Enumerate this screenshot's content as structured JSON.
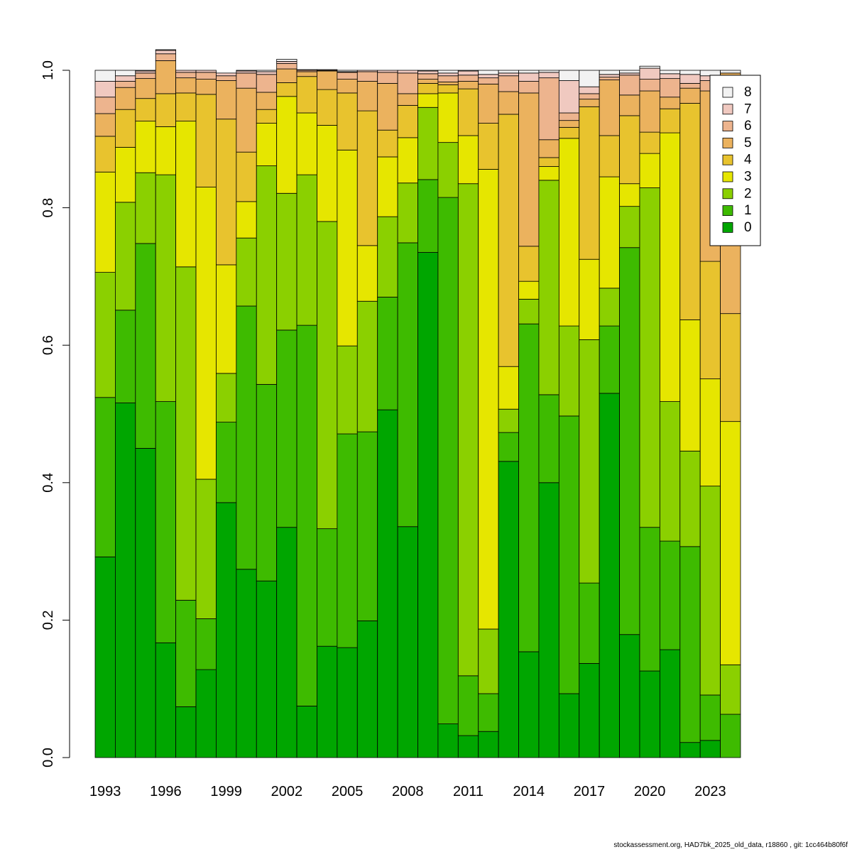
{
  "chart_data": {
    "type": "bar",
    "stacked": true,
    "title": "",
    "xlabel": "",
    "ylabel": "",
    "ylim": [
      0,
      1
    ],
    "grid": false,
    "legend_position": "top-right",
    "categories": [
      "1993",
      "1994",
      "1995",
      "1996",
      "1997",
      "1998",
      "1999",
      "2000",
      "2001",
      "2002",
      "2003",
      "2004",
      "2005",
      "2006",
      "2007",
      "2008",
      "2009",
      "2010",
      "2011",
      "2012",
      "2013",
      "2014",
      "2015",
      "2016",
      "2017",
      "2018",
      "2019",
      "2020",
      "2021",
      "2022",
      "2023",
      "2024"
    ],
    "x_tick_labels": [
      "1993",
      "1996",
      "1999",
      "2002",
      "2005",
      "2008",
      "2011",
      "2014",
      "2017",
      "2020",
      "2023"
    ],
    "x_tick_categories": [
      "1993",
      "1996",
      "1999",
      "2002",
      "2005",
      "2008",
      "2011",
      "2014",
      "2017",
      "2020",
      "2023"
    ],
    "y_ticks": [
      0.0,
      0.2,
      0.4,
      0.6,
      0.8,
      1.0
    ],
    "y_tick_labels": [
      "0.0",
      "0.2",
      "0.4",
      "0.6",
      "0.8",
      "1.0"
    ],
    "series": [
      {
        "name": "0",
        "color": "#00A600",
        "values": [
          0.292,
          0.516,
          0.45,
          0.167,
          0.074,
          0.128,
          0.371,
          0.274,
          0.257,
          0.335,
          0.075,
          0.162,
          0.16,
          0.199,
          0.506,
          0.336,
          0.735,
          0.049,
          0.032,
          0.038,
          0.431,
          0.154,
          0.4,
          0.093,
          0.137,
          0.53,
          0.179,
          0.126,
          0.157,
          0.022,
          0.025,
          0.0
        ]
      },
      {
        "name": "1",
        "color": "#3EBB00",
        "values": [
          0.232,
          0.135,
          0.298,
          0.351,
          0.155,
          0.074,
          0.117,
          0.383,
          0.286,
          0.287,
          0.554,
          0.171,
          0.311,
          0.275,
          0.164,
          0.413,
          0.106,
          0.766,
          0.087,
          0.055,
          0.042,
          0.477,
          0.128,
          0.404,
          0.117,
          0.098,
          0.563,
          0.209,
          0.158,
          0.285,
          0.066,
          0.063
        ]
      },
      {
        "name": "2",
        "color": "#8BD000",
        "values": [
          0.182,
          0.157,
          0.103,
          0.33,
          0.485,
          0.203,
          0.071,
          0.099,
          0.318,
          0.199,
          0.219,
          0.447,
          0.128,
          0.19,
          0.117,
          0.087,
          0.105,
          0.08,
          0.716,
          0.094,
          0.034,
          0.036,
          0.312,
          0.131,
          0.354,
          0.055,
          0.06,
          0.494,
          0.203,
          0.139,
          0.304,
          0.072
        ]
      },
      {
        "name": "3",
        "color": "#E6E600",
        "values": [
          0.146,
          0.08,
          0.075,
          0.07,
          0.212,
          0.425,
          0.158,
          0.053,
          0.062,
          0.141,
          0.09,
          0.14,
          0.285,
          0.081,
          0.087,
          0.066,
          0.02,
          0.072,
          0.07,
          0.669,
          0.062,
          0.026,
          0.02,
          0.273,
          0.117,
          0.162,
          0.033,
          0.05,
          0.391,
          0.191,
          0.156,
          0.354
        ]
      },
      {
        "name": "4",
        "color": "#E8C32E",
        "values": [
          0.052,
          0.055,
          0.033,
          0.048,
          0.041,
          0.135,
          0.212,
          0.072,
          0.02,
          0.02,
          0.053,
          0.052,
          0.083,
          0.196,
          0.039,
          0.047,
          0.015,
          0.012,
          0.068,
          0.067,
          0.367,
          0.051,
          0.013,
          0.016,
          0.222,
          0.06,
          0.099,
          0.031,
          0.035,
          0.315,
          0.171,
          0.157
        ]
      },
      {
        "name": "5",
        "color": "#EBB25E",
        "values": [
          0.033,
          0.032,
          0.029,
          0.048,
          0.022,
          0.022,
          0.056,
          0.093,
          0.025,
          0.02,
          0.007,
          0.027,
          0.02,
          0.043,
          0.068,
          0.017,
          0.006,
          0.004,
          0.011,
          0.057,
          0.033,
          0.223,
          0.026,
          0.01,
          0.011,
          0.081,
          0.03,
          0.06,
          0.017,
          0.022,
          0.248,
          0.35
        ]
      },
      {
        "name": "6",
        "color": "#EDB48E",
        "values": [
          0.024,
          0.009,
          0.008,
          0.01,
          0.008,
          0.01,
          0.007,
          0.022,
          0.026,
          0.008,
          0.002,
          0.001,
          0.01,
          0.014,
          0.016,
          0.03,
          0.008,
          0.009,
          0.009,
          0.009,
          0.023,
          0.017,
          0.09,
          0.011,
          0.008,
          0.004,
          0.029,
          0.017,
          0.027,
          0.007,
          0.015,
          0.0
        ]
      },
      {
        "name": "7",
        "color": "#F0C9C0",
        "values": [
          0.023,
          0.008,
          0.003,
          0.005,
          0.003,
          0.003,
          0.004,
          0.003,
          0.004,
          0.003,
          0.001,
          0.001,
          0.001,
          0.002,
          0.003,
          0.004,
          0.004,
          0.004,
          0.006,
          0.005,
          0.004,
          0.012,
          0.008,
          0.047,
          0.01,
          0.004,
          0.003,
          0.016,
          0.007,
          0.013,
          0.007,
          0.0
        ]
      },
      {
        "name": "8",
        "color": "#F2F2F2",
        "values": [
          0.016,
          0.008,
          0.001,
          0.001,
          0.0,
          0.0,
          0.0,
          0.001,
          0.002,
          0.003,
          0.0,
          0.0,
          0.002,
          0.0,
          0.0,
          0.0,
          0.001,
          0.004,
          0.001,
          0.006,
          0.004,
          0.004,
          0.003,
          0.015,
          0.024,
          0.006,
          0.004,
          0.003,
          0.005,
          0.006,
          0.008,
          0.004
        ]
      }
    ]
  },
  "footer_text": "stockassessment.org, HAD7bk_2025_old_data, r18860 , git: 1cc464b80f6f"
}
